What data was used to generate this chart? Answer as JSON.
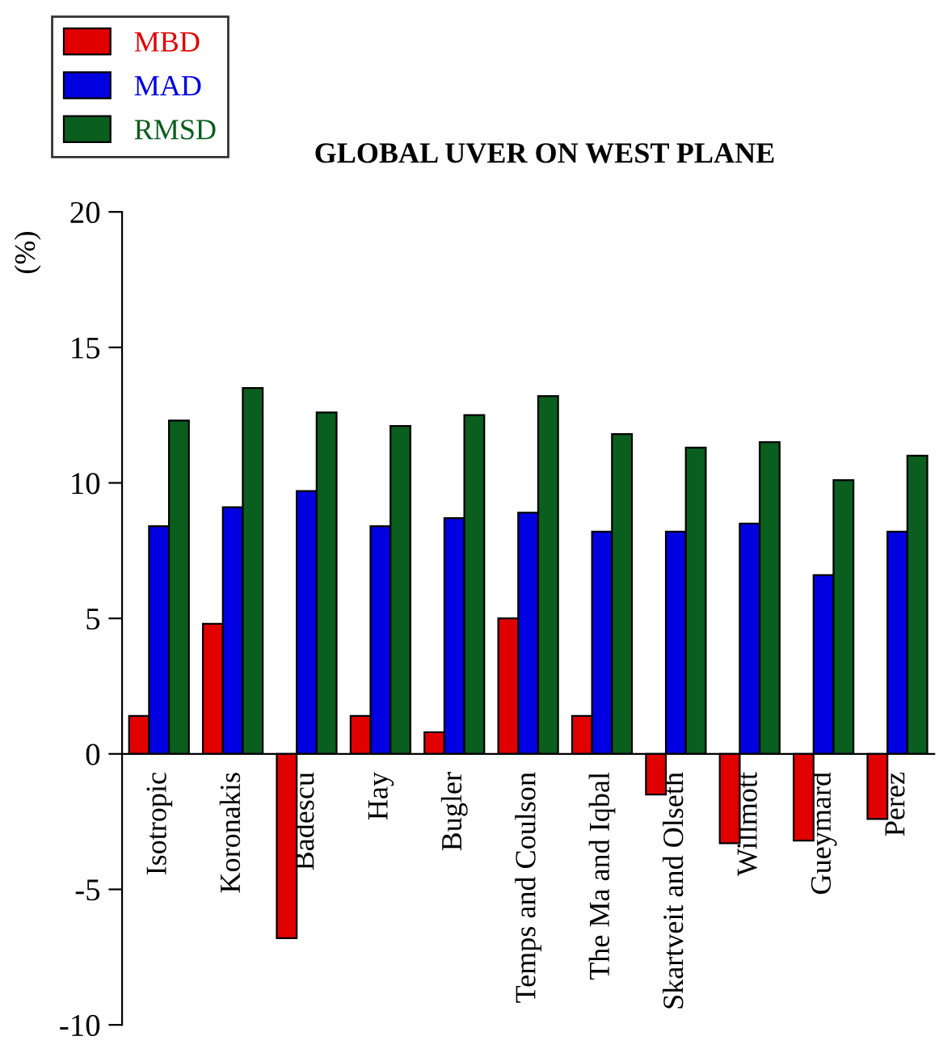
{
  "chart_data": {
    "type": "bar",
    "title": "GLOBAL UVER ON WEST PLANE",
    "ylabel": "(%)",
    "categories": [
      "Isotropic",
      "Koronakis",
      "Badescu",
      "Hay",
      "Bugler",
      "Temps and Coulson",
      "The Ma and Iqbal",
      "Skartveit and Olseth",
      "Willmott",
      "Gueymard",
      "Perez"
    ],
    "series": [
      {
        "name": "MBD",
        "color": "#e00000",
        "values": [
          1.4,
          4.8,
          -6.8,
          1.4,
          0.8,
          5.0,
          1.4,
          -1.5,
          -3.3,
          -3.2,
          -2.4
        ]
      },
      {
        "name": "MAD",
        "color": "#0000e0",
        "values": [
          8.4,
          9.1,
          9.7,
          8.4,
          8.7,
          8.9,
          8.2,
          8.2,
          8.5,
          6.6,
          8.2
        ]
      },
      {
        "name": "RMSD",
        "color": "#0a5e1e",
        "values": [
          12.3,
          13.5,
          12.6,
          12.1,
          12.5,
          13.2,
          11.8,
          11.3,
          11.5,
          10.1,
          11.0
        ]
      }
    ],
    "ylim": [
      -10,
      20
    ],
    "yticks": [
      -10,
      -5,
      0,
      5,
      10,
      15,
      20
    ],
    "legend": "top left"
  }
}
